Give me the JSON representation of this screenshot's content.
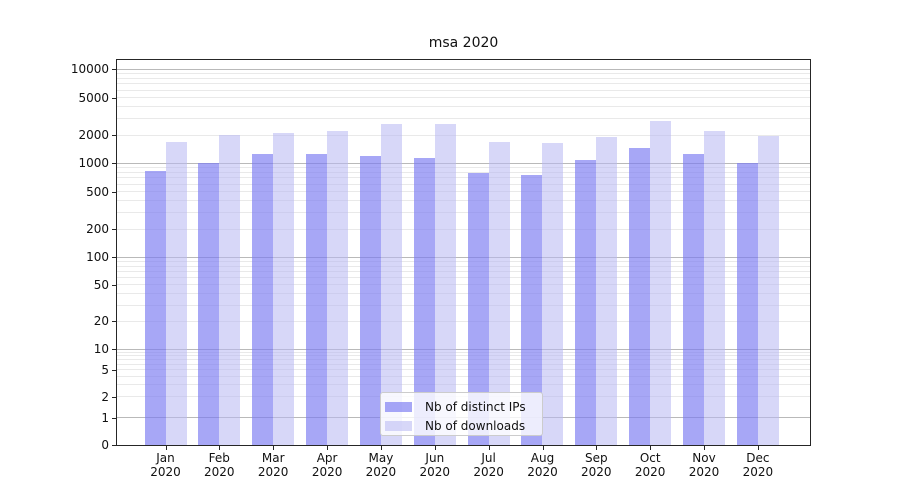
{
  "chart_data": {
    "type": "bar",
    "title": "msa 2020",
    "yscale": "symlog",
    "ylim": [
      0,
      12500
    ],
    "grid": true,
    "ytick_labels": [
      "10000",
      "5000",
      "2000",
      "1000",
      "500",
      "200",
      "100",
      "50",
      "20",
      "10",
      "5",
      "2",
      "1",
      "0"
    ],
    "ytick_values": [
      10000,
      5000,
      2000,
      1000,
      500,
      200,
      100,
      50,
      20,
      10,
      5,
      2,
      1,
      0
    ],
    "categories": [
      "Jan",
      "Feb",
      "Mar",
      "Apr",
      "May",
      "Jun",
      "Jul",
      "Aug",
      "Sep",
      "Oct",
      "Nov",
      "Dec"
    ],
    "category_year": "2020",
    "series": [
      {
        "name": "Nb of distinct IPs",
        "color": "rgba(122,122,242,0.66)",
        "values": [
          820,
          1020,
          1250,
          1270,
          1200,
          1130,
          780,
          760,
          1080,
          1450,
          1270,
          1020
        ]
      },
      {
        "name": "Nb of downloads",
        "color": "rgba(183,183,242,0.56)",
        "values": [
          1700,
          2000,
          2100,
          2200,
          2600,
          2600,
          1700,
          1650,
          1900,
          2800,
          2200,
          1950
        ]
      }
    ],
    "legend": {
      "position": "lower center"
    },
    "colors": {
      "major_grid": "#b9b9b9",
      "minor_grid": "#e9e9e9",
      "spine": "#262626",
      "text": "#111111",
      "background": "#ffffff"
    }
  }
}
